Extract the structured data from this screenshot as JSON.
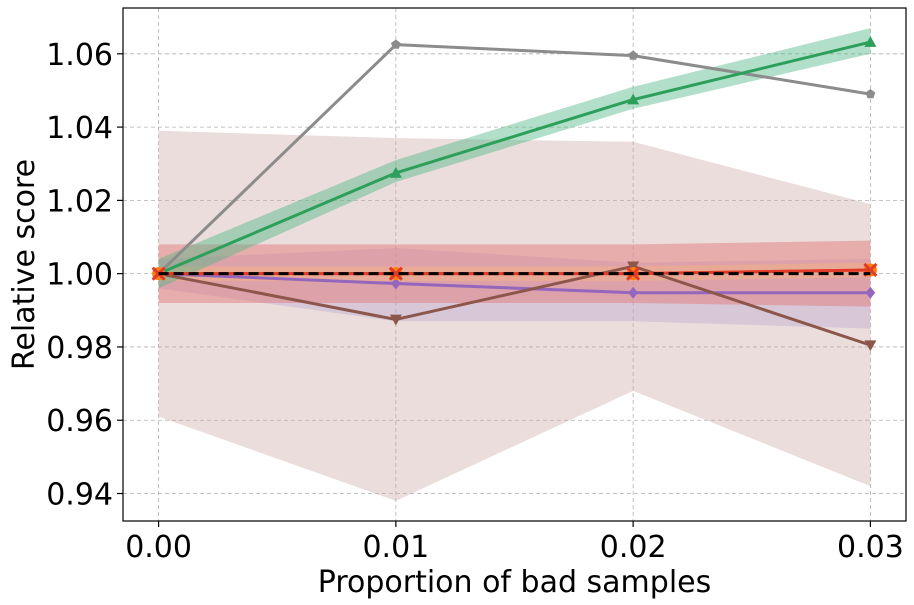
{
  "chart_data": {
    "type": "line",
    "title": "",
    "xlabel": "Proportion of bad samples",
    "ylabel": "Relative score",
    "x": [
      0.0,
      0.01,
      0.02,
      0.03
    ],
    "xticks": [
      "0.00",
      "0.01",
      "0.02",
      "0.03"
    ],
    "xlim": [
      -0.0015,
      0.0315
    ],
    "yticks": [
      "0.94",
      "0.96",
      "0.98",
      "1.00",
      "1.02",
      "1.04",
      "1.06"
    ],
    "ytick_values": [
      0.94,
      0.96,
      0.98,
      1.0,
      1.02,
      1.04,
      1.06
    ],
    "ylim": [
      0.9325,
      1.0725
    ],
    "grid": true,
    "baseline": {
      "value": 1.0,
      "color": "#000000",
      "style": "dashed"
    },
    "bands": [
      {
        "name": "brown-band",
        "color": "#c9a5a0",
        "opacity": 0.38,
        "upper": [
          1.039,
          1.037,
          1.036,
          1.019
        ],
        "lower": [
          0.961,
          0.938,
          0.968,
          0.942
        ]
      },
      {
        "name": "purple-band",
        "color": "#b49fd1",
        "opacity": 0.35,
        "upper": [
          1.004,
          1.007,
          1.003,
          1.004
        ],
        "lower": [
          0.996,
          0.987,
          0.987,
          0.985
        ]
      },
      {
        "name": "red-band",
        "color": "#e57373",
        "opacity": 0.45,
        "upper": [
          1.008,
          1.008,
          1.008,
          1.009
        ],
        "lower": [
          0.992,
          0.992,
          0.992,
          0.991
        ]
      },
      {
        "name": "orange-band",
        "color": "#f4b183",
        "opacity": 0.5,
        "upper": [
          1.002,
          1.002,
          1.002,
          1.003
        ],
        "lower": [
          0.998,
          0.998,
          0.998,
          0.999
        ]
      },
      {
        "name": "green-band",
        "color": "#52b788",
        "opacity": 0.45,
        "upper": [
          1.004,
          1.031,
          1.051,
          1.067
        ],
        "lower": [
          0.996,
          1.025,
          1.045,
          1.06
        ]
      }
    ],
    "series": [
      {
        "name": "gray",
        "color": "#8c8c8c",
        "marker": "pentagon",
        "values": [
          1.0,
          1.0625,
          1.0595,
          1.049
        ]
      },
      {
        "name": "green",
        "color": "#2ca05a",
        "marker": "triangle-up",
        "values": [
          1.0,
          1.0275,
          1.0475,
          1.0632
        ]
      },
      {
        "name": "purple",
        "color": "#9467bd",
        "marker": "diamond",
        "values": [
          1.0,
          0.9973,
          0.9948,
          0.9948
        ]
      },
      {
        "name": "brown",
        "color": "#8c564b",
        "marker": "triangle-down",
        "values": [
          1.0,
          0.9875,
          1.002,
          0.9805
        ]
      },
      {
        "name": "orange",
        "color": "#ff7f0e",
        "marker": "circle",
        "values": [
          1.0,
          1.0,
          1.0,
          1.001
        ]
      },
      {
        "name": "red",
        "color": "#e03a2a",
        "marker": "x",
        "values": [
          1.0,
          1.0,
          1.0,
          1.001
        ]
      }
    ]
  }
}
